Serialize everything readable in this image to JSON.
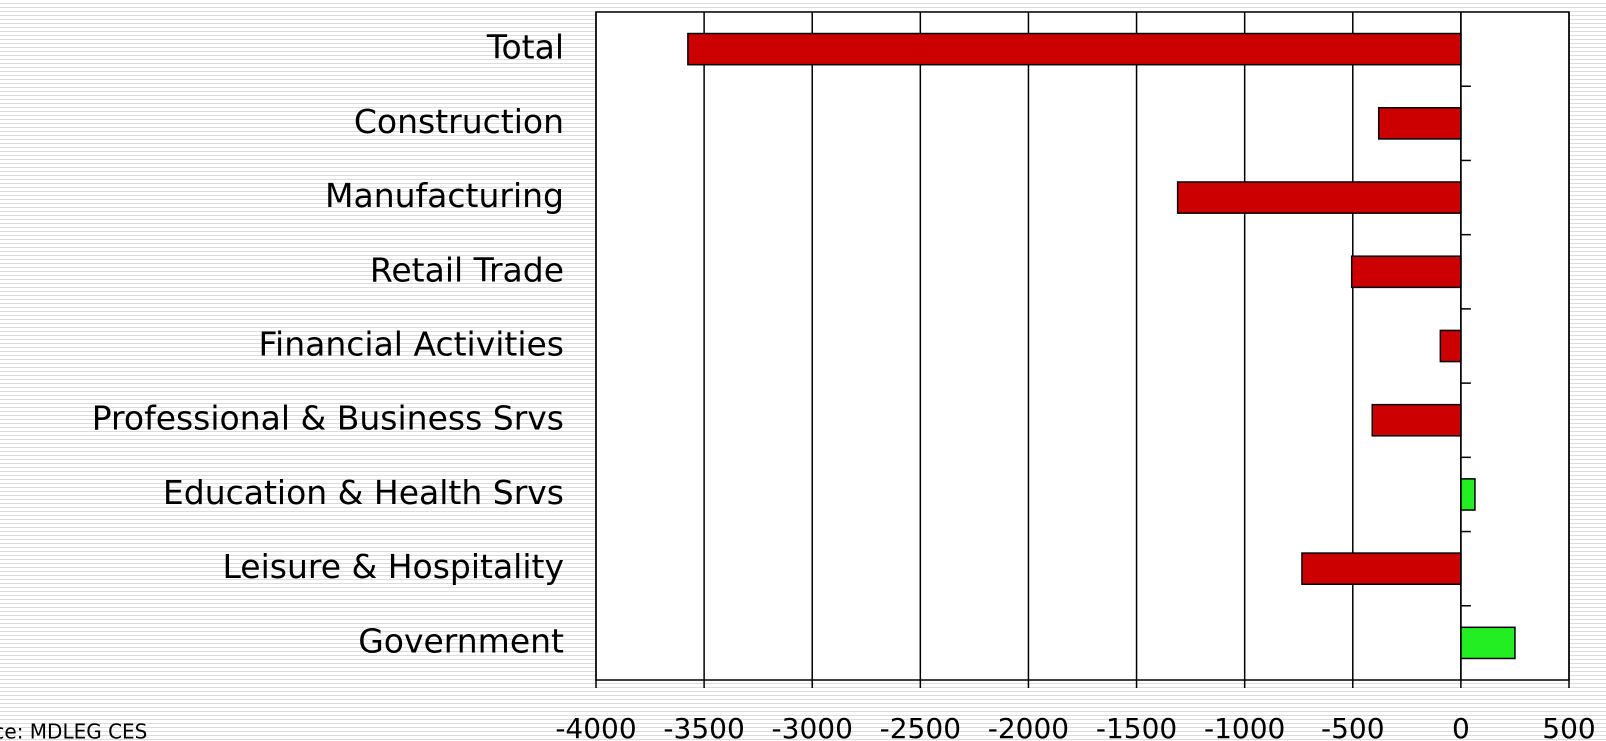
{
  "chart_data": {
    "type": "barh",
    "categories": [
      "Total",
      "Construction",
      "Manufacturing",
      "Retail Trade",
      "Financial Activities",
      "Professional & Business Srvs",
      "Education & Health Srvs",
      "Leisure & Hospitality",
      "Government"
    ],
    "values": [
      -3575,
      -380,
      -1310,
      -505,
      -95,
      -410,
      65,
      -735,
      250
    ],
    "colors": [
      "#cc0000",
      "#cc0000",
      "#cc0000",
      "#cc0000",
      "#cc0000",
      "#cc0000",
      "#22ee22",
      "#cc0000",
      "#22ee22"
    ],
    "xlim": [
      -4000,
      500
    ],
    "xticks": [
      -4000,
      -3500,
      -3000,
      -2500,
      -2000,
      -1500,
      -1000,
      -500,
      0,
      500
    ],
    "grid": true,
    "source": "Source: MDLEG CES"
  }
}
